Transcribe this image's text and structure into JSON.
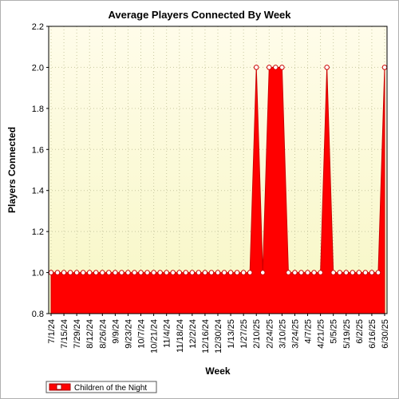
{
  "chart_data": {
    "type": "area",
    "title": "Average Players Connected By Week",
    "xlabel": "Week",
    "ylabel": "Players Connected",
    "ylim": [
      0.8,
      2.2
    ],
    "yticks": [
      "0.8",
      "1.0",
      "1.2",
      "1.4",
      "1.6",
      "1.8",
      "2.0",
      "2.2"
    ],
    "grid": true,
    "legend_position": "bottom-left",
    "colors": {
      "series": "#ff0000",
      "series_dark": "#cc0000",
      "plot_bg_top": "#fffcea",
      "plot_bg_bottom": "#f7f7c5",
      "grid": "#c8c8a0"
    },
    "categories": [
      "7/1/24",
      "7/8/24",
      "7/15/24",
      "7/22/24",
      "7/29/24",
      "8/5/24",
      "8/12/24",
      "8/19/24",
      "8/26/24",
      "9/2/24",
      "9/9/24",
      "9/16/24",
      "9/23/24",
      "9/30/24",
      "10/7/24",
      "10/14/24",
      "10/21/24",
      "10/28/24",
      "11/4/24",
      "11/11/24",
      "11/18/24",
      "11/25/24",
      "12/2/24",
      "12/9/24",
      "12/16/24",
      "12/23/24",
      "12/30/24",
      "1/6/25",
      "1/13/25",
      "1/20/25",
      "1/27/25",
      "2/3/25",
      "2/10/25",
      "2/17/25",
      "2/24/25",
      "3/3/25",
      "3/10/25",
      "3/17/25",
      "3/24/25",
      "3/31/25",
      "4/7/25",
      "4/14/25",
      "4/21/25",
      "4/28/25",
      "5/5/25",
      "5/12/25",
      "5/19/25",
      "5/26/25",
      "6/2/25",
      "6/9/25",
      "6/16/25",
      "6/23/25",
      "6/30/25"
    ],
    "xtick_labels": [
      "7/1/24",
      "7/15/24",
      "7/29/24",
      "8/12/24",
      "8/26/24",
      "9/9/24",
      "9/23/24",
      "10/7/24",
      "10/21/24",
      "11/4/24",
      "11/18/24",
      "12/2/24",
      "12/16/24",
      "12/30/24",
      "1/13/25",
      "1/27/25",
      "2/10/25",
      "2/24/25",
      "3/10/25",
      "3/24/25",
      "4/7/25",
      "4/21/25",
      "5/5/25",
      "5/19/25",
      "6/2/25",
      "6/16/25",
      "6/30/25"
    ],
    "series": [
      {
        "name": "Children of the Night",
        "values": [
          1,
          1,
          1,
          1,
          1,
          1,
          1,
          1,
          1,
          1,
          1,
          1,
          1,
          1,
          1,
          1,
          1,
          1,
          1,
          1,
          1,
          1,
          1,
          1,
          1,
          1,
          1,
          1,
          1,
          1,
          1,
          1,
          2,
          1,
          2,
          2,
          2,
          1,
          1,
          1,
          1,
          1,
          1,
          2,
          1,
          1,
          1,
          1,
          1,
          1,
          1,
          1,
          2
        ]
      }
    ]
  }
}
